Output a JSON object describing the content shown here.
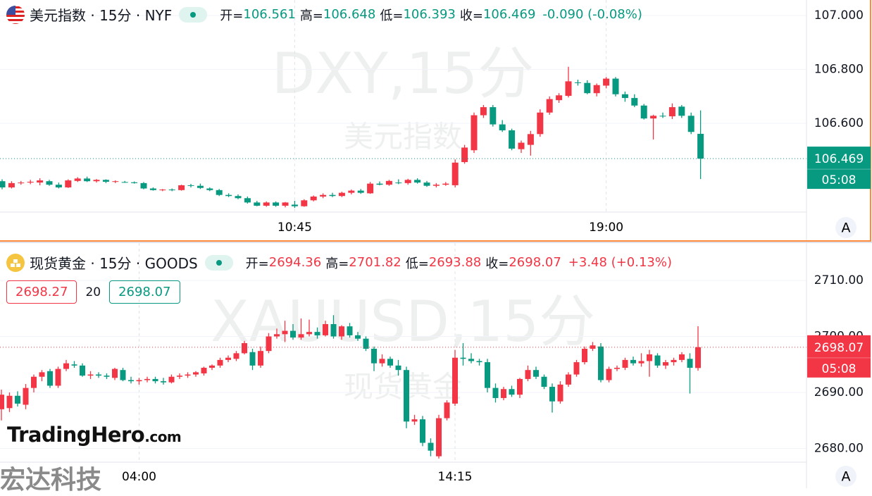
{
  "chart_data": [
    {
      "type": "candlestick",
      "title": "美元指数 · 15分 · NYF",
      "ohlc_labels": [
        "开=",
        "高=",
        "低=",
        "收="
      ],
      "change": "-0.090 (-0.08%)",
      "watermark": "DXY,15分",
      "watermark_sub": "美元指数",
      "countdown": "05:08",
      "colors": {
        "up": "#f23645",
        "down": "#089981"
      },
      "ylim": [
        106.273,
        107.058
      ],
      "yticks": [
        {
          "value": 106.6,
          "label": "106.600"
        },
        {
          "value": 106.8,
          "label": "106.800"
        },
        {
          "value": 107.0,
          "label": "107.000"
        }
      ],
      "grid": true,
      "categories": [
        null,
        null,
        null,
        null,
        null,
        null,
        null,
        null,
        null,
        null,
        null,
        null,
        null,
        null,
        null,
        null,
        null,
        null,
        null,
        null,
        null,
        null,
        null,
        null,
        null,
        null,
        null,
        null,
        null,
        null,
        null,
        "10:45",
        null,
        null,
        null,
        null,
        null,
        null,
        null,
        null,
        null,
        null,
        null,
        null,
        null,
        null,
        null,
        null,
        null,
        null,
        null,
        null,
        null,
        null,
        null,
        null,
        null,
        null,
        null,
        null,
        null,
        null,
        null,
        null,
        "19:00",
        null,
        null,
        null,
        null,
        null,
        null,
        null,
        null,
        null,
        null
      ],
      "open": [
        106.385,
        106.362,
        106.378,
        106.38,
        106.38,
        106.385,
        106.372,
        106.362,
        106.386,
        106.395,
        106.385,
        106.39,
        106.383,
        106.382,
        106.381,
        106.378,
        106.358,
        106.352,
        106.354,
        106.352,
        106.37,
        106.368,
        106.358,
        106.352,
        106.334,
        106.33,
        106.322,
        106.306,
        106.294,
        106.306,
        106.294,
        106.298,
        106.292,
        106.314,
        106.328,
        106.334,
        106.33,
        106.342,
        106.35,
        106.34,
        106.376,
        106.372,
        106.38,
        106.378,
        106.39,
        106.38,
        106.368,
        106.372,
        106.37,
        106.456,
        106.5,
        106.63,
        106.66,
        106.596,
        106.574,
        106.504,
        106.52,
        106.56,
        106.64,
        106.686,
        106.702,
        106.752,
        106.75,
        106.712,
        106.74,
        106.766,
        106.708,
        106.694,
        106.666,
        106.618,
        106.628,
        106.626,
        106.662,
        106.628,
        106.561
      ],
      "high": [
        106.392,
        106.385,
        106.386,
        106.39,
        106.396,
        106.39,
        106.38,
        106.392,
        106.4,
        106.402,
        106.393,
        106.392,
        106.388,
        106.386,
        106.384,
        106.382,
        106.362,
        106.356,
        106.358,
        106.372,
        106.375,
        106.376,
        106.362,
        106.356,
        106.34,
        106.336,
        106.328,
        106.312,
        106.31,
        106.31,
        106.308,
        106.312,
        106.318,
        106.332,
        106.34,
        106.342,
        106.346,
        106.354,
        106.356,
        106.382,
        106.384,
        106.39,
        106.392,
        106.394,
        106.396,
        106.386,
        106.378,
        106.382,
        106.466,
        106.52,
        106.64,
        106.668,
        106.668,
        106.612,
        106.58,
        106.536,
        106.572,
        106.652,
        106.7,
        106.712,
        106.81,
        106.762,
        106.76,
        106.748,
        106.772,
        106.772,
        106.718,
        106.708,
        106.672,
        106.632,
        106.64,
        106.674,
        106.668,
        106.64,
        106.648
      ],
      "low": [
        106.355,
        106.358,
        106.372,
        106.374,
        106.37,
        106.368,
        106.358,
        106.36,
        106.382,
        106.382,
        106.38,
        106.378,
        106.378,
        106.379,
        106.376,
        106.355,
        106.35,
        106.348,
        106.348,
        106.35,
        106.362,
        106.356,
        106.348,
        106.33,
        106.326,
        106.318,
        106.302,
        106.292,
        106.29,
        106.29,
        106.288,
        106.286,
        106.29,
        106.31,
        106.322,
        106.326,
        106.326,
        106.336,
        106.338,
        106.338,
        106.37,
        106.368,
        106.374,
        106.372,
        106.376,
        106.364,
        106.362,
        106.368,
        106.362,
        106.45,
        106.49,
        106.62,
        106.588,
        106.568,
        106.5,
        106.49,
        106.48,
        106.55,
        106.632,
        106.676,
        106.696,
        106.74,
        106.708,
        106.7,
        106.73,
        106.7,
        106.68,
        106.66,
        106.614,
        106.54,
        106.62,
        106.616,
        106.62,
        106.56,
        106.393
      ],
      "close": [
        106.362,
        106.378,
        106.38,
        106.383,
        106.388,
        106.372,
        106.362,
        106.388,
        106.395,
        106.385,
        106.39,
        106.383,
        106.385,
        106.381,
        106.378,
        106.358,
        106.352,
        106.354,
        106.352,
        106.37,
        106.368,
        106.36,
        106.352,
        106.334,
        106.33,
        106.322,
        106.306,
        106.294,
        106.306,
        106.294,
        106.306,
        106.292,
        106.314,
        106.328,
        106.334,
        106.33,
        106.342,
        106.35,
        106.342,
        106.376,
        106.372,
        106.386,
        106.378,
        106.39,
        106.38,
        106.368,
        106.372,
        106.376,
        106.454,
        106.51,
        106.63,
        106.66,
        106.596,
        106.574,
        106.506,
        106.528,
        106.56,
        106.64,
        106.69,
        106.704,
        106.756,
        106.75,
        106.712,
        106.742,
        106.766,
        106.708,
        106.694,
        106.666,
        106.618,
        106.628,
        106.626,
        106.66,
        106.628,
        106.568,
        106.469
      ]
    },
    {
      "type": "candlestick",
      "title": "现货黄金 · 15分 · GOODS",
      "ohlc_labels": [
        "开=",
        "高=",
        "低=",
        "收="
      ],
      "change": "+3.48 (+0.13%)",
      "watermark": "XAUUSD,15分",
      "watermark_sub": "现货黄金",
      "countdown": "05:08",
      "quote": {
        "sell": 2698.27,
        "spread": 20,
        "buy": 2698.07
      },
      "colors": {
        "up": "#f23645",
        "down": "#089981"
      },
      "ylim": [
        2677.67,
        2716.67
      ],
      "yticks": [
        {
          "value": 2680,
          "label": "2680.00"
        },
        {
          "value": 2690,
          "label": "2690.00"
        },
        {
          "value": 2700,
          "label": "2700.00"
        },
        {
          "value": 2710,
          "label": "2710.00"
        }
      ],
      "grid": true,
      "categories": [
        null,
        null,
        null,
        null,
        null,
        null,
        null,
        null,
        null,
        null,
        null,
        null,
        null,
        null,
        null,
        null,
        null,
        "04:00",
        null,
        null,
        null,
        null,
        null,
        null,
        null,
        null,
        null,
        null,
        null,
        null,
        null,
        null,
        null,
        null,
        null,
        null,
        null,
        null,
        null,
        null,
        null,
        null,
        null,
        null,
        null,
        null,
        null,
        null,
        null,
        null,
        null,
        null,
        null,
        null,
        null,
        null,
        "14:15",
        null,
        null,
        null,
        null,
        null,
        null,
        null,
        null,
        null,
        null,
        null,
        null,
        null,
        null,
        null,
        null,
        null,
        null,
        null,
        null,
        null,
        null,
        null,
        null,
        null,
        null,
        null,
        null,
        null,
        null
      ],
      "open": [
        2687.0,
        2687.2,
        2689.4,
        2687.8,
        2690.8,
        2692.8,
        2693.8,
        2691.2,
        2694.2,
        2695.0,
        2694.8,
        2693.0,
        2693.2,
        2693.0,
        2692.6,
        2694.0,
        2692.2,
        2692.0,
        2692.2,
        2692.4,
        2692.0,
        2691.8,
        2692.8,
        2693.0,
        2693.2,
        2693.4,
        2694.4,
        2694.8,
        2695.8,
        2696.0,
        2697.0,
        2697.2,
        2694.8,
        2697.4,
        2700.0,
        2700.4,
        2701.0,
        2699.8,
        2700.4,
        2700.8,
        2700.2,
        2702.2,
        2700.0,
        2701.8,
        2700.2,
        2699.6,
        2697.8,
        2695.2,
        2696.0,
        2694.8,
        2694.0,
        2684.8,
        2685.2,
        2681.0,
        2678.6,
        2685.4,
        2688.0,
        2696.2,
        2696.0,
        2695.6,
        2695.4,
        2690.8,
        2689.0,
        2690.6,
        2689.6,
        2692.4,
        2694.0,
        2692.8,
        2691.0,
        2688.4,
        2691.4,
        2693.2,
        2695.4,
        2697.8,
        2698.2,
        2692.2,
        2694.2,
        2694.4,
        2695.8,
        2695.2,
        2695.6,
        2696.6,
        2694.8,
        2695.4,
        2695.8,
        2696.0,
        2694.36
      ],
      "high": [
        2690.5,
        2690.0,
        2690.2,
        2691.5,
        2693.2,
        2694.0,
        2694.2,
        2694.6,
        2695.8,
        2695.6,
        2695.2,
        2693.8,
        2693.6,
        2693.4,
        2694.4,
        2694.4,
        2692.8,
        2692.6,
        2692.8,
        2692.8,
        2692.6,
        2693.2,
        2693.4,
        2693.6,
        2693.8,
        2694.6,
        2695.0,
        2696.2,
        2696.6,
        2697.4,
        2699.2,
        2697.8,
        2698.2,
        2700.6,
        2701.4,
        2702.8,
        2702.2,
        2703.2,
        2703.0,
        2701.6,
        2702.8,
        2703.8,
        2702.0,
        2702.4,
        2700.8,
        2700.0,
        2698.2,
        2696.8,
        2696.4,
        2695.8,
        2694.6,
        2686.0,
        2685.8,
        2681.8,
        2686.0,
        2688.6,
        2697.6,
        2698.8,
        2697.0,
        2696.0,
        2696.0,
        2691.6,
        2691.0,
        2691.2,
        2692.6,
        2694.8,
        2694.6,
        2693.2,
        2691.6,
        2692.0,
        2693.6,
        2695.8,
        2698.2,
        2699.0,
        2698.8,
        2694.6,
        2694.8,
        2696.2,
        2696.4,
        2697.0,
        2697.6,
        2697.0,
        2695.8,
        2696.2,
        2697.2,
        2697.0,
        2701.82
      ],
      "low": [
        2685.0,
        2686.5,
        2687.5,
        2687.0,
        2690.0,
        2692.0,
        2690.8,
        2690.8,
        2693.8,
        2694.4,
        2692.8,
        2692.4,
        2692.6,
        2692.4,
        2692.2,
        2692.0,
        2691.6,
        2691.4,
        2691.8,
        2691.6,
        2691.4,
        2691.6,
        2692.4,
        2692.6,
        2692.8,
        2693.0,
        2694.0,
        2694.4,
        2695.4,
        2695.6,
        2696.8,
        2694.0,
        2694.4,
        2697.0,
        2699.6,
        2699.0,
        2699.4,
        2699.4,
        2700.0,
        2699.6,
        2700.0,
        2699.6,
        2699.4,
        2699.8,
        2699.2,
        2697.4,
        2693.8,
        2694.6,
        2694.4,
        2693.0,
        2683.6,
        2684.2,
        2680.4,
        2678.6,
        2678.2,
        2685.0,
        2687.6,
        2694.8,
        2695.2,
        2694.8,
        2690.0,
        2688.2,
        2688.6,
        2689.2,
        2689.0,
        2692.0,
        2692.4,
        2690.6,
        2686.4,
        2688.0,
        2691.0,
        2692.8,
        2695.0,
        2697.4,
        2691.8,
        2691.8,
        2693.8,
        2694.0,
        2694.8,
        2694.6,
        2692.8,
        2694.4,
        2694.2,
        2694.8,
        2695.4,
        2689.8,
        2693.88
      ],
      "close": [
        2689.6,
        2689.4,
        2688.0,
        2690.8,
        2692.8,
        2693.6,
        2691.2,
        2694.2,
        2695.2,
        2694.8,
        2693.0,
        2693.2,
        2693.0,
        2692.8,
        2694.2,
        2692.2,
        2692.0,
        2692.2,
        2692.4,
        2692.0,
        2691.8,
        2692.8,
        2693.0,
        2693.2,
        2693.6,
        2694.4,
        2694.8,
        2695.8,
        2696.2,
        2697.0,
        2698.8,
        2694.8,
        2697.4,
        2700.0,
        2700.4,
        2701.0,
        2699.8,
        2700.4,
        2700.8,
        2700.2,
        2702.2,
        2700.0,
        2701.8,
        2700.2,
        2699.6,
        2697.8,
        2695.2,
        2696.0,
        2694.8,
        2694.0,
        2684.8,
        2685.2,
        2681.0,
        2679.6,
        2685.4,
        2688.2,
        2696.2,
        2696.0,
        2695.6,
        2695.4,
        2690.8,
        2689.0,
        2690.6,
        2689.6,
        2692.4,
        2694.0,
        2692.8,
        2691.0,
        2688.4,
        2691.4,
        2693.2,
        2695.4,
        2697.8,
        2698.4,
        2692.2,
        2694.2,
        2694.4,
        2695.8,
        2695.2,
        2695.6,
        2696.8,
        2694.8,
        2695.4,
        2695.8,
        2696.8,
        2694.4,
        2698.07
      ]
    }
  ],
  "ui": {
    "auto_button": "A"
  },
  "branding": {
    "brand": "TradingHero",
    "brand_suffix": ".com",
    "company": "宏达科技"
  }
}
